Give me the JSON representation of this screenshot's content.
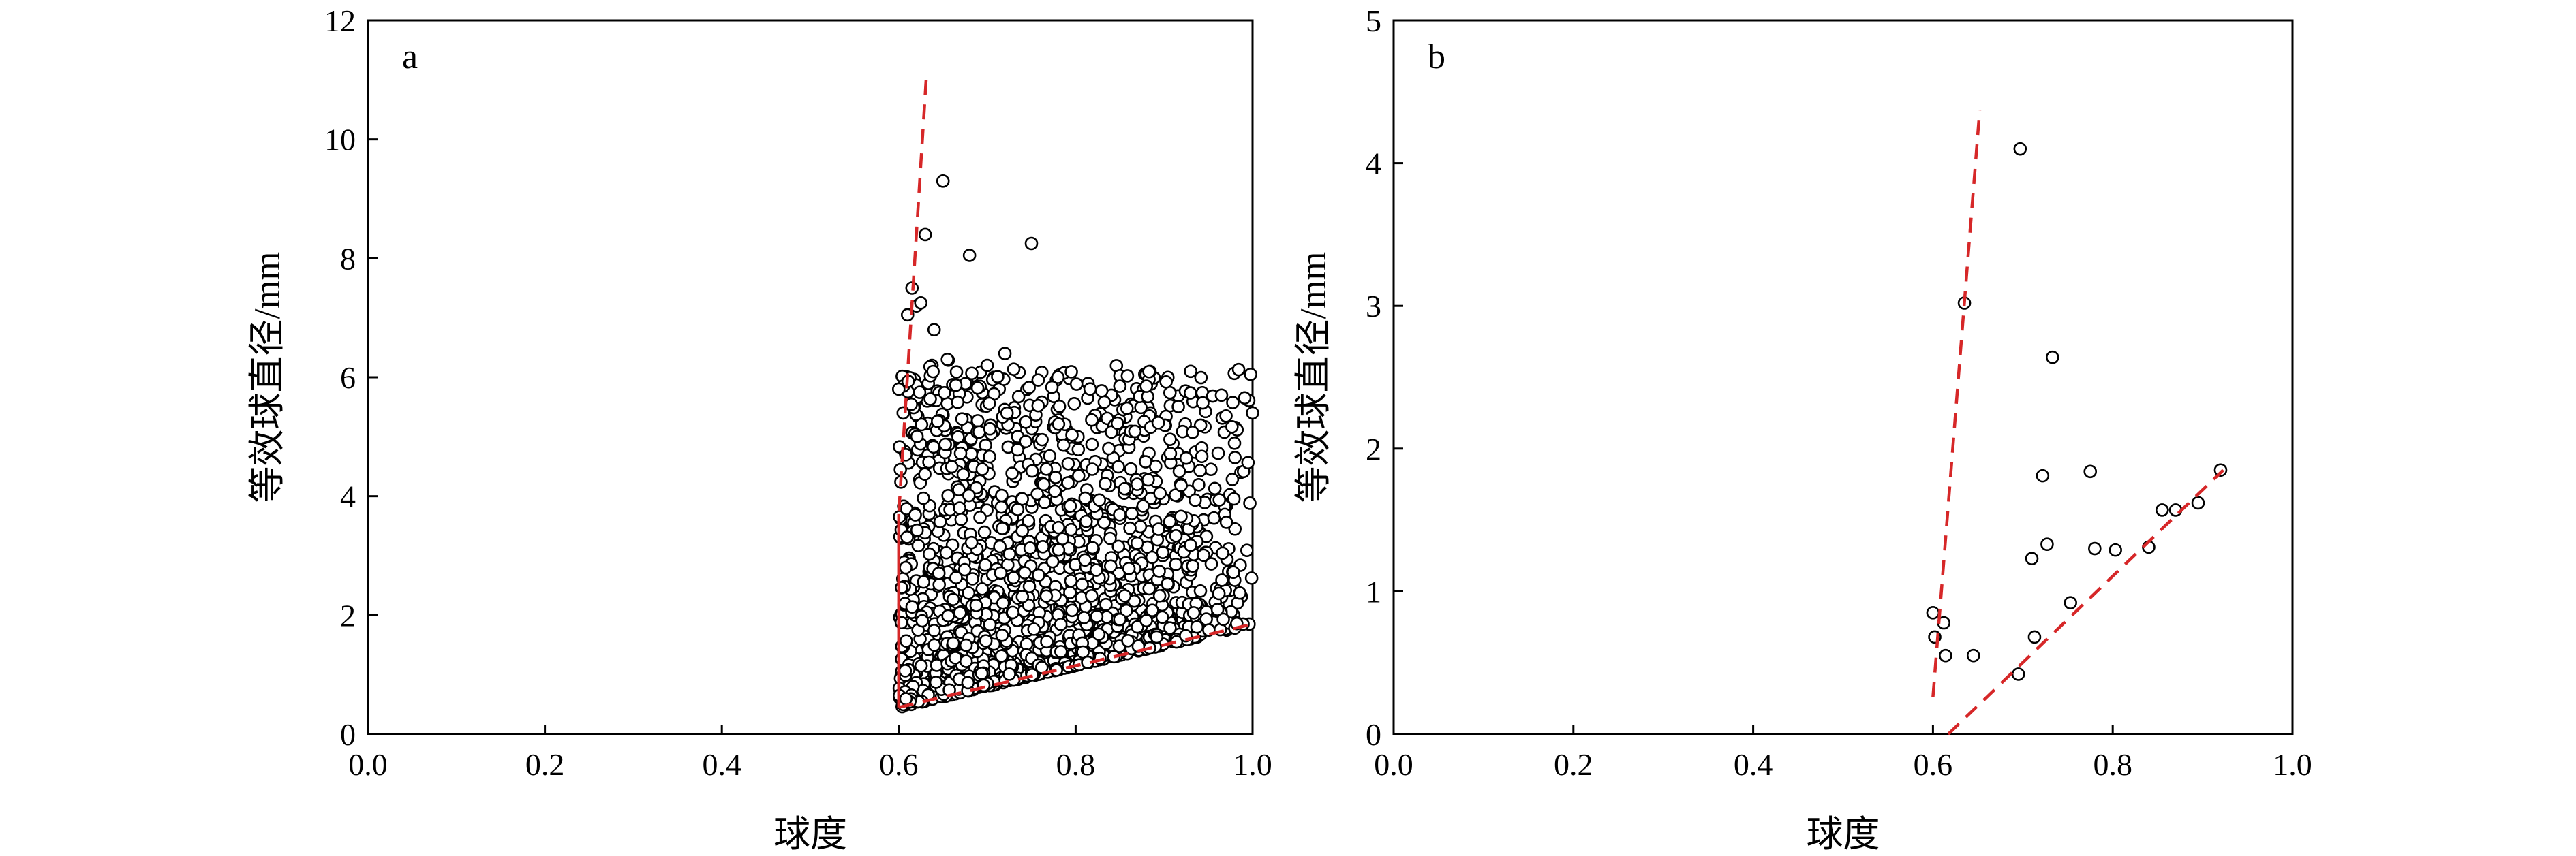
{
  "figure": {
    "panels": [
      "a",
      "b"
    ]
  },
  "chart_data": [
    {
      "type": "scatter",
      "panel_label": "a",
      "xlabel": "球度",
      "ylabel": "等效球直径/mm",
      "xlim": [
        0.0,
        1.0
      ],
      "ylim": [
        0,
        12
      ],
      "xticks": [
        "0.0",
        "0.2",
        "0.4",
        "0.6",
        "0.8",
        "1.0"
      ],
      "yticks": [
        "0",
        "2",
        "4",
        "6",
        "8",
        "10",
        "12"
      ],
      "grid": false,
      "marker": "open-circle",
      "point_color": "#000000",
      "notable_points": [
        [
          0.65,
          9.3
        ],
        [
          0.63,
          8.4
        ],
        [
          0.68,
          8.05
        ],
        [
          0.75,
          8.25
        ],
        [
          0.615,
          7.5
        ],
        [
          0.62,
          7.2
        ],
        [
          0.625,
          7.25
        ],
        [
          0.61,
          7.05
        ],
        [
          0.64,
          6.8
        ],
        [
          0.655,
          6.3
        ],
        [
          0.7,
          6.2
        ],
        [
          0.72,
          6.4
        ],
        [
          0.78,
          6.0
        ],
        [
          0.85,
          5.85
        ],
        [
          0.88,
          5.85
        ],
        [
          0.93,
          6.1
        ],
        [
          0.97,
          5.35
        ],
        [
          1.0,
          5.4
        ],
        [
          0.6,
          5.8
        ],
        [
          0.605,
          5.4
        ]
      ],
      "cloud": {
        "n_points": 1700,
        "x_range": [
          0.6,
          1.0
        ],
        "lower_envelope": [
          [
            0.6,
            0.45
          ],
          [
            1.0,
            1.85
          ]
        ],
        "upper_typical_y": 4.3
      },
      "reference_lines": [
        {
          "name": "upper",
          "style": "dashed",
          "color": "#d62728",
          "points": [
            [
              0.631,
              11.0
            ],
            [
              0.6,
              3.7
            ]
          ]
        },
        {
          "name": "connector",
          "style": "solid",
          "color": "#d62728",
          "points": [
            [
              0.6,
              3.7
            ],
            [
              0.6,
              0.45
            ]
          ]
        },
        {
          "name": "lower",
          "style": "dashed",
          "color": "#d62728",
          "points": [
            [
              0.6,
              0.45
            ],
            [
              1.0,
              1.85
            ]
          ]
        }
      ]
    },
    {
      "type": "scatter",
      "panel_label": "b",
      "xlabel": "球度",
      "ylabel": "等效球直径/mm",
      "xlim": [
        0.0,
        1.0
      ],
      "ylim": [
        0,
        5
      ],
      "xticks": [
        "0.0",
        "0.2",
        "0.4",
        "0.6",
        "0.8",
        "1.0"
      ],
      "yticks": [
        "0",
        "1",
        "2",
        "3",
        "4",
        "5"
      ],
      "grid": false,
      "marker": "open-circle",
      "point_color": "#000000",
      "points": [
        [
          0.6,
          0.85
        ],
        [
          0.602,
          0.68
        ],
        [
          0.612,
          0.78
        ],
        [
          0.614,
          0.55
        ],
        [
          0.635,
          3.02
        ],
        [
          0.645,
          0.55
        ],
        [
          0.695,
          0.42
        ],
        [
          0.697,
          4.1
        ],
        [
          0.71,
          1.23
        ],
        [
          0.713,
          0.68
        ],
        [
          0.722,
          1.81
        ],
        [
          0.727,
          1.33
        ],
        [
          0.733,
          2.64
        ],
        [
          0.753,
          0.92
        ],
        [
          0.775,
          1.84
        ],
        [
          0.78,
          1.3
        ],
        [
          0.803,
          1.29
        ],
        [
          0.84,
          1.31
        ],
        [
          0.855,
          1.57
        ],
        [
          0.87,
          1.57
        ],
        [
          0.895,
          1.62
        ],
        [
          0.92,
          1.85
        ]
      ],
      "reference_lines": [
        {
          "name": "upper",
          "style": "dashed",
          "color": "#d62728",
          "points": [
            [
              0.6,
              0.26
            ],
            [
              0.652,
              4.37
            ]
          ]
        },
        {
          "name": "lower",
          "style": "dashed",
          "color": "#d62728",
          "points": [
            [
              0.617,
              0.0
            ],
            [
              0.923,
              1.85
            ]
          ]
        }
      ]
    }
  ]
}
